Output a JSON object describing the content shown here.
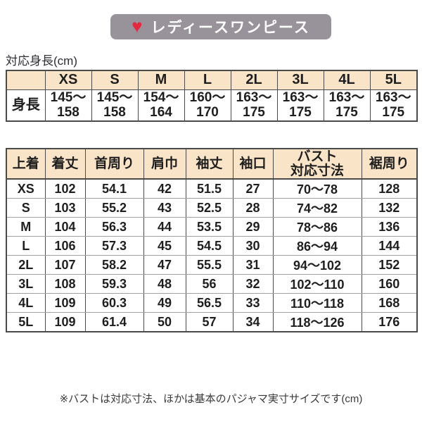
{
  "badge": {
    "label": "レディースワンピース",
    "heart_icon": "heart-icon"
  },
  "colors": {
    "badge_bg": "#98939B",
    "heart_red": "#E8273E",
    "table_header_fill": "#F9E4C8",
    "border_dark": "#4A4A4A",
    "border_light": "#A0A0A0"
  },
  "height_table": {
    "caption": "対応身長(cm)",
    "columns": [
      "",
      "XS",
      "S",
      "M",
      "L",
      "2L",
      "3L",
      "4L",
      "5L"
    ],
    "row_label": "身長",
    "values": [
      [
        "145～",
        "158"
      ],
      [
        "145～",
        "158"
      ],
      [
        "154～",
        "164"
      ],
      [
        "160～",
        "170"
      ],
      [
        "163～",
        "175"
      ],
      [
        "163～",
        "175"
      ],
      [
        "163～",
        "175"
      ],
      [
        "163～",
        "175"
      ]
    ]
  },
  "garment_table": {
    "columns": [
      "上着",
      "着丈",
      "首周り",
      "肩巾",
      "袖丈",
      "袖口",
      [
        "バスト",
        "対応寸法"
      ],
      "裾周り"
    ],
    "rows": [
      [
        "XS",
        "102",
        "54.1",
        "42",
        "51.5",
        "27",
        "70～78",
        "128"
      ],
      [
        "S",
        "103",
        "55.2",
        "43",
        "52.5",
        "28",
        "74～82",
        "132"
      ],
      [
        "M",
        "104",
        "56.3",
        "44",
        "53.5",
        "29",
        "78～86",
        "136"
      ],
      [
        "L",
        "106",
        "57.3",
        "45",
        "54.5",
        "30",
        "86～94",
        "144"
      ],
      [
        "2L",
        "107",
        "58.2",
        "47",
        "55.5",
        "31",
        "94～102",
        "152"
      ],
      [
        "3L",
        "108",
        "59.3",
        "48",
        "56",
        "32",
        "102～110",
        "160"
      ],
      [
        "4L",
        "109",
        "60.3",
        "49",
        "56.5",
        "33",
        "110～118",
        "168"
      ],
      [
        "5L",
        "109",
        "61.4",
        "50",
        "57",
        "34",
        "118～126",
        "176"
      ]
    ]
  },
  "footnote": "※バストは対応寸法、ほかは基本のパジャマ実寸サイズです(cm)"
}
